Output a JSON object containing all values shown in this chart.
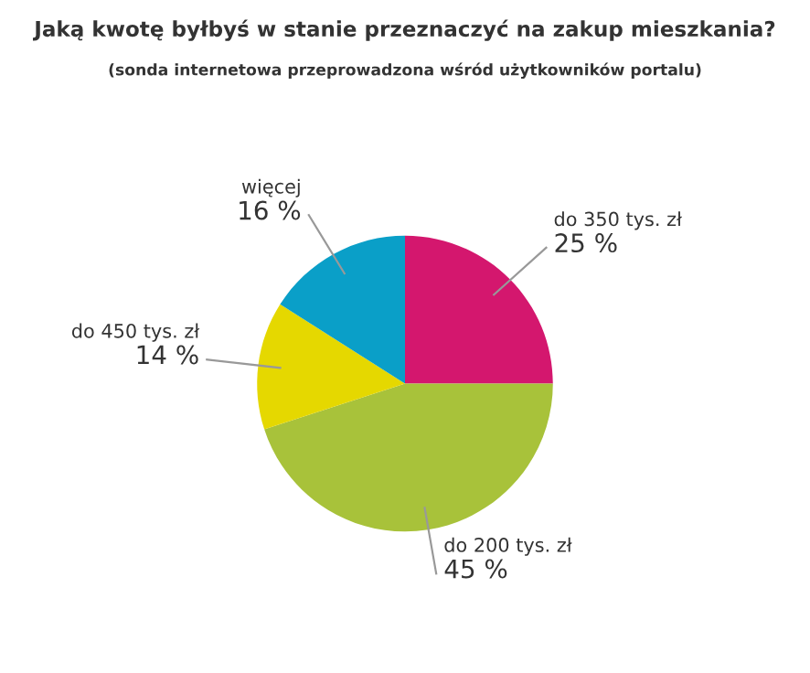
{
  "chart_data": {
    "type": "pie",
    "title": "Jaką kwotę byłbyś w stanie przeznaczyć na zakup mieszkania?",
    "subtitle": "(sonda internetowa przeprowadzona wśród użytkowników portalu)",
    "categories": [
      "do 350 tys. zł",
      "do 200 tys. zł",
      "do 450 tys. zł",
      "więcej"
    ],
    "values": [
      25,
      45,
      14,
      16
    ],
    "value_labels": [
      "25 %",
      "45 %",
      "14 %",
      "16 %"
    ],
    "colors": [
      "#d4176e",
      "#a8c23a",
      "#e5d800",
      "#0a9fc8"
    ],
    "legend": false
  }
}
